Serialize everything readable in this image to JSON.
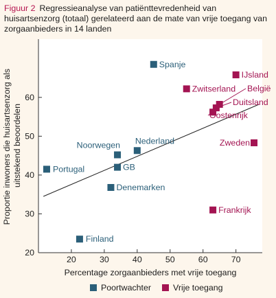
{
  "header": {
    "figure_label": "Figuur 2",
    "title": "Regressieanalyse van patiënttevredenheid van huisartsenzorg (totaal) gerelateerd aan de mate van vrije toegang van zorgaanbieders in 14 landen"
  },
  "colors": {
    "poortwachter": "#2b5f79",
    "vrije_toegang": "#a31452",
    "plot_background": "#ffffff",
    "page_background": "#fdf6ec"
  },
  "chart_data": {
    "type": "scatter",
    "title": "Regressieanalyse van patiënttevredenheid van huisartsenzorg (totaal) gerelateerd aan de mate van vrije toegang van zorgaanbieders in 14 landen",
    "xlabel": "Percentage zorgaanbieders met vrije toegang",
    "ylabel": "Proportie inwoners die huisartsenzorg als uitstekend beoordelen",
    "xlim": [
      10,
      78
    ],
    "ylim": [
      20,
      75
    ],
    "xticks": [
      20,
      30,
      40,
      50,
      60,
      70
    ],
    "yticks": [
      20,
      30,
      40,
      50,
      60
    ],
    "grid": false,
    "legend_position": "bottom",
    "series": [
      {
        "name": "Poortwachter",
        "marker": "square",
        "points": [
          {
            "label": "Spanje",
            "x": 45,
            "y": 68.5
          },
          {
            "label": "Nederland",
            "x": 40,
            "y": 46.3
          },
          {
            "label": "Noorwegen",
            "x": 34,
            "y": 45.2
          },
          {
            "label": "GB",
            "x": 34,
            "y": 42
          },
          {
            "label": "Portugal",
            "x": 12.5,
            "y": 41.5
          },
          {
            "label": "Denemarken",
            "x": 32,
            "y": 36.8
          },
          {
            "label": "Finland",
            "x": 22.5,
            "y": 23.5
          }
        ]
      },
      {
        "name": "Vrije toegang",
        "marker": "square",
        "points": [
          {
            "label": "IJsland",
            "x": 70,
            "y": 65.8
          },
          {
            "label": "Zwitserland",
            "x": 55,
            "y": 62.2
          },
          {
            "label": "België",
            "x": 65,
            "y": 58.2
          },
          {
            "label": "Duitsland",
            "x": 64,
            "y": 57.3
          },
          {
            "label": "Oostenrijk",
            "x": 63,
            "y": 56.2
          },
          {
            "label": "Zweden",
            "x": 75.5,
            "y": 48.3
          },
          {
            "label": "Frankrijk",
            "x": 63,
            "y": 31
          }
        ]
      }
    ],
    "regression_line": {
      "x": [
        11.5,
        77
      ],
      "y": [
        34.5,
        58.2
      ]
    }
  },
  "legend": {
    "items": [
      {
        "label": "Poortwachter"
      },
      {
        "label": "Vrije toegang"
      }
    ]
  }
}
